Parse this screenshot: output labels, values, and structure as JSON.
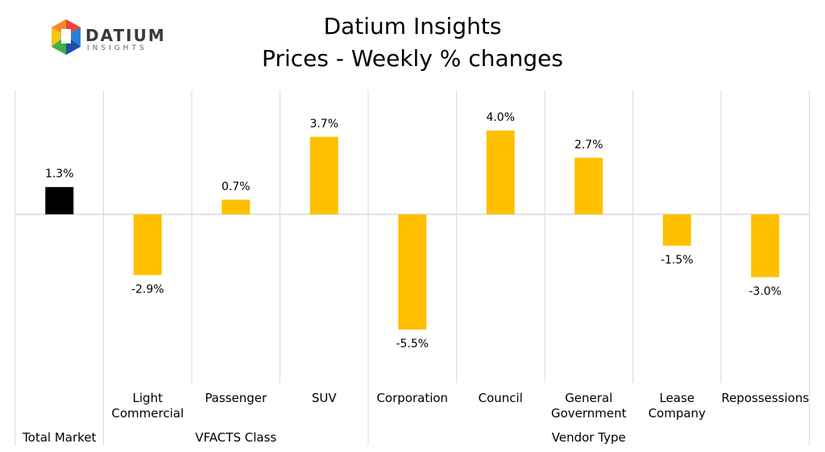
{
  "logo": {
    "name": "DATIUM",
    "sub": "INSIGHTS"
  },
  "title": "Datium Insights",
  "subtitle": "Prices - Weekly % changes",
  "colors": {
    "total": "#000000",
    "bar": "#FFC000",
    "grid": "#d9d9d9"
  },
  "chart_data": {
    "type": "bar",
    "title": "Datium Insights",
    "subtitle": "Prices - Weekly % changes",
    "categories": [
      "Total Market",
      "Light Commercial",
      "Passenger",
      "SUV",
      "Corporation",
      "Council",
      "General Government",
      "Lease Company",
      "Repossessions"
    ],
    "category_lines": [
      [
        "Total Market"
      ],
      [
        "Light",
        "Commercial"
      ],
      [
        "Passenger"
      ],
      [
        "SUV"
      ],
      [
        "Corporation"
      ],
      [
        "Council"
      ],
      [
        "General",
        "Government"
      ],
      [
        "Lease",
        "Company"
      ],
      [
        "Repossessions"
      ]
    ],
    "groups": [
      {
        "label": "Total Market",
        "categories": [
          "Total Market"
        ]
      },
      {
        "label": "VFACTS Class",
        "categories": [
          "Light Commercial",
          "Passenger",
          "SUV"
        ]
      },
      {
        "label": "Vendor Type",
        "categories": [
          "Corporation",
          "Council",
          "General Government",
          "Lease Company",
          "Repossessions"
        ]
      }
    ],
    "values": [
      1.3,
      -2.9,
      0.7,
      3.7,
      -5.5,
      4.0,
      2.7,
      -1.5,
      -3.0
    ],
    "value_labels": [
      "1.3%",
      "-2.9%",
      "0.7%",
      "3.7%",
      "-5.5%",
      "4.0%",
      "2.7%",
      "-1.5%",
      "-3.0%"
    ],
    "unit": "%",
    "grid": true,
    "legend": "none"
  }
}
